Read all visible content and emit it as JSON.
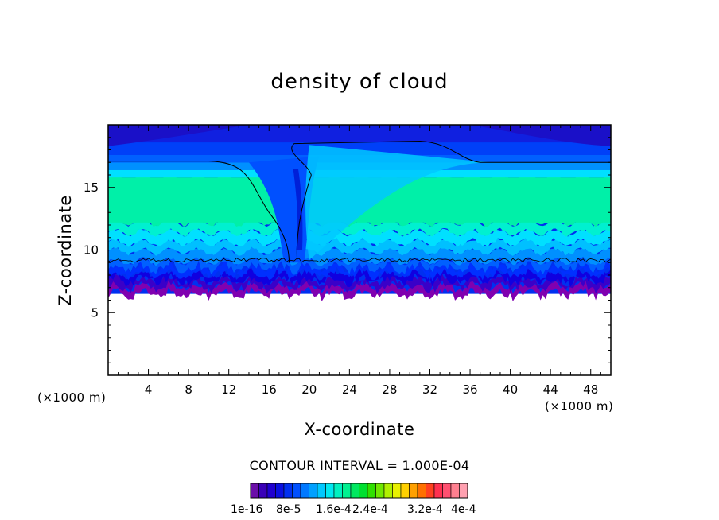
{
  "chart_data": {
    "type": "heatmap",
    "title": "density of cloud",
    "xlabel": "X-coordinate",
    "ylabel": "Z-coordinate",
    "x_unit": "(×1000 m)",
    "y_unit": "(×1000 m)",
    "xlim": [
      0,
      50
    ],
    "ylim": [
      0,
      20
    ],
    "x_ticks": [
      4,
      8,
      12,
      16,
      20,
      24,
      28,
      32,
      36,
      40,
      44,
      48
    ],
    "y_ticks": [
      5,
      10,
      15
    ],
    "contour_interval_text": "CONTOUR INTERVAL = 1.000E-04",
    "colorbar": {
      "colors": [
        "#6a0ea8",
        "#3a00b8",
        "#2000d0",
        "#0a10e0",
        "#0030f0",
        "#0050ff",
        "#0078ff",
        "#00a0ff",
        "#00c8ff",
        "#00e8f0",
        "#00f0c0",
        "#00f090",
        "#00e860",
        "#00e030",
        "#30e000",
        "#70e800",
        "#b0f000",
        "#e8f000",
        "#ffd000",
        "#ffa000",
        "#ff7000",
        "#ff4020",
        "#ff3050",
        "#ff5070",
        "#ff8090",
        "#ffa0b0"
      ],
      "labels": [
        "1e-16",
        "8e-5",
        "1.6e-4",
        "2.4e-4",
        "3.2e-4",
        "4e-4"
      ]
    },
    "cloud": {
      "base_z": 6.5,
      "top_z": 20,
      "contour_levels_z": [
        17,
        9.2
      ],
      "updraft_x": [
        17,
        20
      ],
      "plateau_left_z": 17.1,
      "plateau_center_z": 18.7,
      "plateau_right_z": 17.0,
      "band_colors": [
        "#8000b0",
        "#3a00c8",
        "#1000e0",
        "#0030ff",
        "#0060ff",
        "#0090ff",
        "#00c0ff",
        "#00e0ff",
        "#00f0d0",
        "#00f0a8"
      ]
    }
  }
}
